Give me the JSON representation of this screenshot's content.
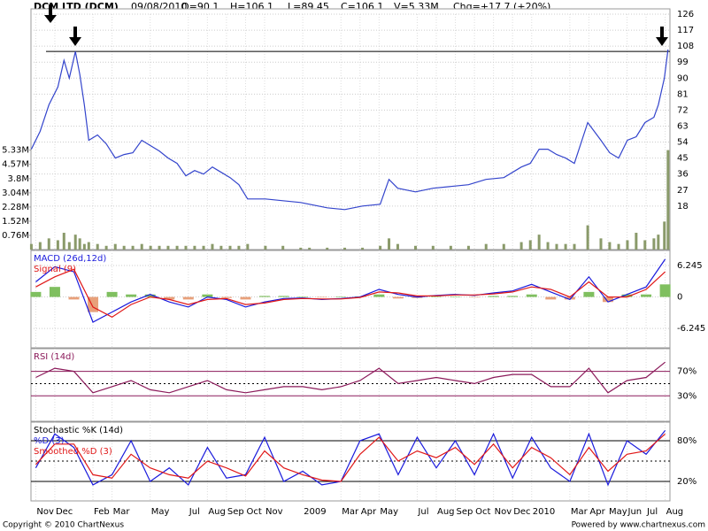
{
  "header": {
    "title": "DCM LTD (DCM)",
    "date": "09/08/2010",
    "open": "O=90.1",
    "high": "H=106.1",
    "low": "L=89.45",
    "close": "C=106.1",
    "volume": "V=5.33M",
    "change": "Chg=+17.7 (+20%)"
  },
  "footer": {
    "copyright": "Copyright © 2010 ChartNexus",
    "powered": "Powered by www.chartnexus.com"
  },
  "chart_data": [
    {
      "type": "line",
      "x": [
        -0.23,
        0.23,
        0.69,
        1.16,
        1.48,
        1.76,
        2.08,
        2.31,
        2.55,
        2.78,
        3.24,
        3.7,
        4.17,
        4.63,
        5.09,
        5.56,
        6.02,
        6.48,
        6.94,
        7.41,
        7.87,
        8.33,
        8.8,
        9.26,
        9.72,
        10.19,
        10.65,
        11.11,
        12.04,
        12.96,
        13.89,
        14.35,
        15.28,
        16.2,
        17.13,
        18.06,
        18.52,
        18.98,
        19.91,
        20.83,
        21.76,
        22.69,
        23.61,
        24.54,
        25.46,
        25.93,
        26.39,
        26.85,
        27.31,
        27.78,
        28.24,
        28.94,
        29.63,
        30.09,
        30.56,
        31.02,
        31.48,
        31.94,
        32.41,
        32.64,
        32.96,
        33.15
      ],
      "series": [
        {
          "color": "#3344cc",
          "values": [
            50,
            60,
            75,
            85,
            100,
            90,
            105,
            92,
            75,
            55,
            58,
            53,
            45,
            47,
            48,
            55,
            52,
            49,
            45,
            42,
            35,
            38,
            36,
            40,
            37,
            34,
            30,
            22,
            22,
            21,
            20,
            19,
            17,
            16,
            18,
            19,
            33,
            28,
            26,
            28,
            29,
            30,
            33,
            34,
            40,
            42,
            50,
            50,
            47,
            45,
            42,
            65,
            55,
            48,
            45,
            55,
            57,
            65,
            68,
            75,
            90,
            106.1
          ]
        }
      ],
      "volume": {
        "color": "#8a9a6a",
        "values": [
          0.3,
          0.4,
          0.6,
          0.5,
          0.9,
          0.4,
          0.8,
          0.6,
          0.3,
          0.4,
          0.3,
          0.2,
          0.3,
          0.2,
          0.2,
          0.3,
          0.2,
          0.2,
          0.2,
          0.2,
          0.2,
          0.2,
          0.2,
          0.3,
          0.2,
          0.2,
          0.2,
          0.3,
          0.2,
          0.2,
          0.1,
          0.1,
          0.1,
          0.1,
          0.1,
          0.2,
          0.6,
          0.3,
          0.2,
          0.2,
          0.2,
          0.2,
          0.3,
          0.3,
          0.4,
          0.5,
          0.8,
          0.4,
          0.3,
          0.3,
          0.3,
          1.3,
          0.6,
          0.4,
          0.3,
          0.5,
          0.9,
          0.5,
          0.6,
          0.8,
          1.5,
          5.33
        ]
      },
      "reference_line": 105,
      "xlim": [
        -0.25,
        33.25
      ],
      "ylim": [
        -6.5,
        129
      ],
      "yticks": [
        126,
        117,
        108,
        99,
        90,
        81,
        72,
        63,
        54,
        45,
        36,
        27,
        18
      ],
      "y2lim": [
        0,
        12.9
      ],
      "y2ticks": [
        {
          "value": 5.33,
          "label": "5.33M"
        },
        {
          "value": 4.57,
          "label": "4.57M"
        },
        {
          "value": 3.8,
          "label": "3.8M"
        },
        {
          "value": 3.04,
          "label": "3.04M"
        },
        {
          "value": 2.28,
          "label": "2.28M"
        },
        {
          "value": 1.52,
          "label": "1.52M"
        },
        {
          "value": 0.76,
          "label": "0.76M"
        }
      ]
    },
    {
      "type": "line",
      "x": [
        0,
        1,
        2,
        3,
        4,
        5,
        6,
        7,
        8,
        9,
        10,
        11,
        12,
        13,
        14,
        15,
        16,
        17,
        18,
        19,
        20,
        21,
        22,
        23,
        24,
        25,
        26,
        27,
        28,
        29,
        30,
        31,
        32,
        33
      ],
      "series": [
        {
          "name": "MACD (26d,12d)",
          "color": "#1a1adc",
          "values": [
            3,
            6,
            5,
            -5,
            -3,
            -1,
            0.5,
            -1,
            -2,
            0,
            -0.5,
            -2,
            -1,
            -0.3,
            -0.2,
            -0.5,
            -0.3,
            0,
            1.5,
            0.5,
            0,
            0.3,
            0.5,
            0.3,
            0.8,
            1.2,
            2.5,
            1,
            -0.5,
            4,
            -1,
            0.5,
            2,
            7.5
          ]
        },
        {
          "name": "Signal (9)",
          "color": "#e01818",
          "values": [
            2,
            4,
            5.5,
            -2,
            -4,
            -1.5,
            0,
            -0.5,
            -1.5,
            -0.5,
            -0.3,
            -1.5,
            -1.2,
            -0.5,
            -0.3,
            -0.4,
            -0.4,
            -0.1,
            1,
            0.8,
            0.2,
            0.2,
            0.4,
            0.4,
            0.6,
            1,
            2,
            1.5,
            0,
            3,
            0,
            0,
            1.5,
            5
          ]
        }
      ],
      "histogram_values": [
        1,
        2,
        -0.5,
        -3,
        1,
        0.5,
        0.5,
        -0.5,
        -0.5,
        0.5,
        -0.2,
        -0.5,
        0.2,
        0.2,
        0.1,
        -0.1,
        0.1,
        0.1,
        0.5,
        -0.3,
        -0.2,
        0.1,
        0.1,
        -0.1,
        0.2,
        0.2,
        0.5,
        -0.5,
        -0.5,
        1,
        -1,
        0.5,
        0.5,
        2.5
      ],
      "histogram_colors": [
        "#7fbf5f",
        "#e8a07a"
      ],
      "xlim": [
        -0.25,
        33.25
      ],
      "ylim": [
        -10.1,
        9.24
      ],
      "yticks": [
        6.245,
        0,
        -6.245
      ]
    },
    {
      "type": "line",
      "x": [
        0,
        1,
        2,
        3,
        4,
        5,
        6,
        7,
        8,
        9,
        10,
        11,
        12,
        13,
        14,
        15,
        16,
        17,
        18,
        19,
        20,
        21,
        22,
        23,
        24,
        25,
        26,
        27,
        28,
        29,
        30,
        31,
        32,
        33
      ],
      "series": [
        {
          "name": "RSI (14d)",
          "color": "#8b1a5a",
          "values": [
            60,
            75,
            70,
            35,
            45,
            55,
            40,
            35,
            45,
            55,
            40,
            35,
            40,
            45,
            45,
            40,
            45,
            55,
            75,
            50,
            55,
            60,
            55,
            50,
            60,
            65,
            65,
            45,
            45,
            75,
            35,
            55,
            60,
            85
          ]
        }
      ],
      "grid_color": "#8b1a5a",
      "midline": 50,
      "xlim": [
        -0.25,
        33.25
      ],
      "ylim": [
        -11.5,
        107
      ],
      "yticks": [
        {
          "value": 70,
          "label": "70%"
        },
        {
          "value": 30,
          "label": "30%"
        }
      ]
    },
    {
      "type": "line",
      "title": "Stochastic %K (14d)",
      "x": [
        0,
        1,
        2,
        3,
        4,
        5,
        6,
        7,
        8,
        9,
        10,
        11,
        12,
        13,
        14,
        15,
        16,
        17,
        18,
        19,
        20,
        21,
        22,
        23,
        24,
        25,
        26,
        27,
        28,
        29,
        30,
        31,
        32,
        33
      ],
      "series": [
        {
          "name": "%D (3)",
          "color": "#1a1adc",
          "values": [
            40,
            90,
            70,
            15,
            30,
            80,
            20,
            40,
            15,
            70,
            25,
            30,
            85,
            20,
            35,
            15,
            20,
            80,
            90,
            30,
            85,
            40,
            80,
            30,
            90,
            25,
            85,
            40,
            20,
            90,
            15,
            80,
            60,
            95
          ]
        },
        {
          "name": "Smoothed %D (3)",
          "color": "#e01818",
          "values": [
            45,
            75,
            75,
            30,
            25,
            60,
            40,
            30,
            25,
            50,
            40,
            28,
            65,
            40,
            30,
            22,
            20,
            60,
            85,
            50,
            65,
            55,
            70,
            45,
            75,
            40,
            70,
            55,
            30,
            70,
            35,
            60,
            65,
            90
          ]
        }
      ],
      "grid_color": "#000000",
      "midline": 50,
      "xlim": [
        -0.25,
        33.25
      ],
      "ylim": [
        -8.6,
        107.3
      ],
      "yticks": [
        {
          "value": 80,
          "label": "80%"
        },
        {
          "value": 20,
          "label": "20%"
        }
      ],
      "xticks": [
        {
          "value": 0,
          "label": "Nov"
        },
        {
          "value": 1,
          "label": "Dec"
        },
        {
          "value": 3,
          "label": "Feb"
        },
        {
          "value": 4,
          "label": "Mar"
        },
        {
          "value": 6,
          "label": "May"
        },
        {
          "value": 8,
          "label": "Jul"
        },
        {
          "value": 9,
          "label": "Aug"
        },
        {
          "value": 10,
          "label": "Sep"
        },
        {
          "value": 11,
          "label": "Oct"
        },
        {
          "value": 12,
          "label": "Nov"
        },
        {
          "value": 14,
          "label": "2009"
        },
        {
          "value": 16,
          "label": "Mar"
        },
        {
          "value": 17,
          "label": "Apr"
        },
        {
          "value": 18,
          "label": "May"
        },
        {
          "value": 20,
          "label": "Jul"
        },
        {
          "value": 21,
          "label": "Aug"
        },
        {
          "value": 22,
          "label": "Sep"
        },
        {
          "value": 23,
          "label": "Oct"
        },
        {
          "value": 24,
          "label": "Nov"
        },
        {
          "value": 25,
          "label": "Dec"
        },
        {
          "value": 26,
          "label": "2010"
        },
        {
          "value": 28,
          "label": "Mar"
        },
        {
          "value": 29,
          "label": "Apr"
        },
        {
          "value": 30,
          "label": "May"
        },
        {
          "value": 31,
          "label": "Jun"
        },
        {
          "value": 32,
          "label": "Jul"
        },
        {
          "value": 33,
          "label": "Aug"
        }
      ]
    }
  ]
}
